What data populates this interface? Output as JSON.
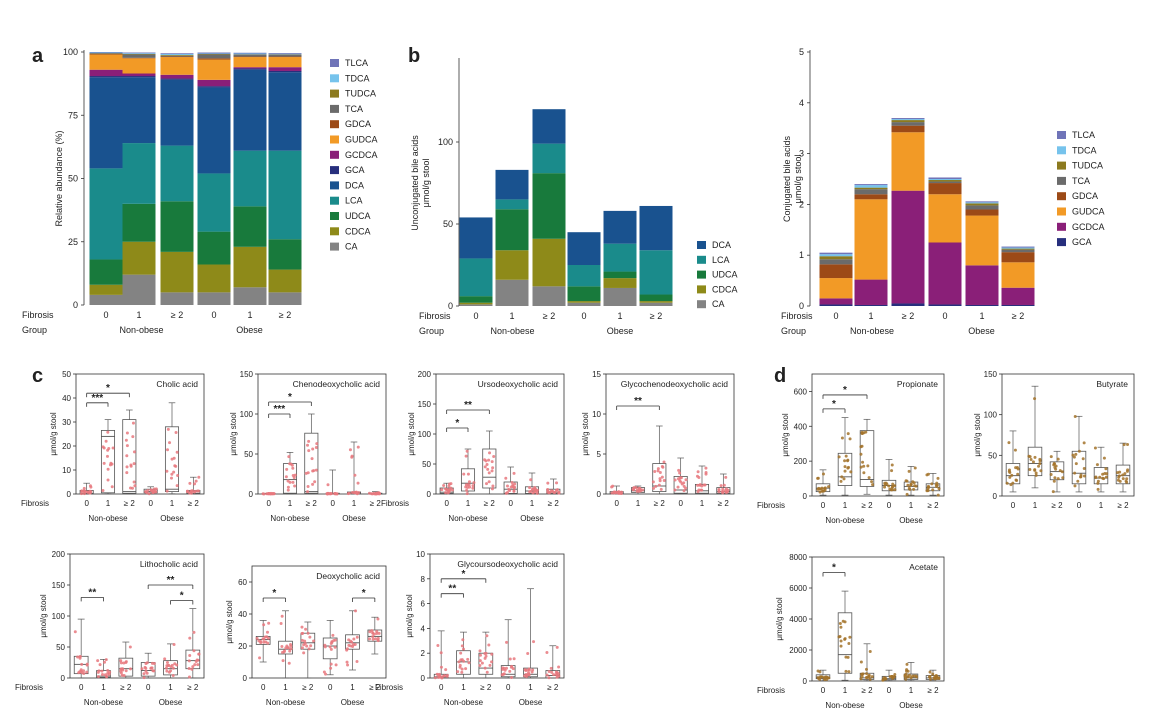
{
  "panel_labels": [
    "a",
    "b",
    "c",
    "d"
  ],
  "common": {
    "fibrosis_label": "Fibrosis",
    "group_label": "Group",
    "fib_ticks": [
      "0",
      "1",
      "≥ 2",
      "0",
      "1",
      "≥ 2"
    ],
    "groups": [
      "Non-obese",
      "Obese"
    ],
    "umol_label": "μmol/g stool"
  },
  "colors": {
    "TLCA": "#6f74b8",
    "TDCA": "#76c3ec",
    "TUDCA": "#8c7a1f",
    "TCA": "#6b6b6b",
    "GDCA": "#9c4a17",
    "GUDCA": "#f29a26",
    "GCDCA": "#8a1f78",
    "GCA": "#272f7d",
    "DCA": "#19528f",
    "LCA": "#1a8b8b",
    "UDCA": "#187a3c",
    "CDCA": "#8e8a19",
    "CA": "#838383",
    "box_red": "#e8787e",
    "box_brown": "#a3732a"
  },
  "chart_data": [
    {
      "id": "a",
      "type": "bar",
      "stacked": true,
      "ylabel": "Relative abundance (%)",
      "ylim": [
        0,
        100
      ],
      "yticks": [
        0,
        25,
        50,
        75,
        100
      ],
      "categories": [
        "0",
        "1",
        "≥ 2",
        "0",
        "1",
        "≥ 2"
      ],
      "legend": [
        "TLCA",
        "TDCA",
        "TUDCA",
        "TCA",
        "GDCA",
        "GUDCA",
        "GCDCA",
        "GCA",
        "DCA",
        "LCA",
        "UDCA",
        "CDCA",
        "CA"
      ],
      "series": [
        {
          "name": "CA",
          "values": [
            4,
            12,
            5,
            5,
            7,
            5
          ]
        },
        {
          "name": "CDCA",
          "values": [
            4,
            13,
            16,
            11,
            16,
            9
          ]
        },
        {
          "name": "UDCA",
          "values": [
            10,
            15,
            20,
            13,
            16,
            12
          ]
        },
        {
          "name": "LCA",
          "values": [
            36,
            24,
            22,
            23,
            22,
            35
          ]
        },
        {
          "name": "DCA",
          "values": [
            36,
            26,
            26,
            34,
            32,
            31
          ]
        },
        {
          "name": "GCA",
          "values": [
            0.5,
            0.5,
            0.5,
            0.5,
            0.5,
            0.5
          ]
        },
        {
          "name": "GCDCA",
          "values": [
            2.5,
            1,
            1.5,
            2.5,
            0.5,
            1.5
          ]
        },
        {
          "name": "GUDCA",
          "values": [
            6,
            6,
            7,
            8,
            4,
            4
          ]
        },
        {
          "name": "GDCA",
          "values": [
            0.2,
            0.2,
            0.2,
            0.5,
            0.2,
            0.2
          ]
        },
        {
          "name": "TCA",
          "values": [
            0.3,
            1.3,
            0.3,
            1.5,
            0.8,
            0.8
          ]
        },
        {
          "name": "TUDCA",
          "values": [
            0.1,
            0.2,
            0.3,
            0.2,
            0.1,
            0.1
          ]
        },
        {
          "name": "TDCA",
          "values": [
            0.2,
            0.3,
            0.4,
            0.2,
            0.3,
            0.2
          ]
        },
        {
          "name": "TLCA",
          "values": [
            0.2,
            0.3,
            0.3,
            0.4,
            0.3,
            0.3
          ]
        }
      ]
    },
    {
      "id": "b1",
      "type": "bar",
      "stacked": true,
      "ylabel": "Unconjugated bile acids",
      "ylabel2": "μmol/g stool",
      "ylim": [
        0,
        150
      ],
      "yticks": [
        0,
        50,
        100
      ],
      "categories": [
        "0",
        "1",
        "≥ 2",
        "0",
        "1",
        "≥ 2"
      ],
      "legend": [
        "DCA",
        "LCA",
        "UDCA",
        "CDCA",
        "CA"
      ],
      "series": [
        {
          "name": "CA",
          "values": [
            1,
            16,
            12,
            2,
            11,
            2
          ]
        },
        {
          "name": "CDCA",
          "values": [
            1,
            18,
            29,
            1,
            6,
            1
          ]
        },
        {
          "name": "UDCA",
          "values": [
            4,
            25,
            40,
            9,
            4,
            4
          ]
        },
        {
          "name": "LCA",
          "values": [
            23,
            6,
            18,
            13,
            17,
            27
          ]
        },
        {
          "name": "DCA",
          "values": [
            25,
            18,
            21,
            20,
            20,
            27
          ]
        }
      ]
    },
    {
      "id": "b2",
      "type": "bar",
      "stacked": true,
      "ylabel": "Conjugated bile acids",
      "ylabel2": "μmol/g stool",
      "ylim": [
        0,
        5
      ],
      "yticks": [
        0,
        1,
        2,
        3,
        4,
        5
      ],
      "categories": [
        "0",
        "1",
        "≥ 2",
        "0",
        "1",
        "≥ 2"
      ],
      "legend": [
        "TLCA",
        "TDCA",
        "TUDCA",
        "TCA",
        "GDCA",
        "GUDCA",
        "GCDCA",
        "GCA"
      ],
      "series": [
        {
          "name": "GCA",
          "values": [
            0.03,
            0.02,
            0.05,
            0.03,
            0.02,
            0.02
          ]
        },
        {
          "name": "GCDCA",
          "values": [
            0.12,
            0.5,
            2.22,
            1.22,
            0.78,
            0.34
          ]
        },
        {
          "name": "GUDCA",
          "values": [
            0.4,
            1.58,
            1.15,
            0.95,
            0.98,
            0.5
          ]
        },
        {
          "name": "GDCA",
          "values": [
            0.27,
            0.1,
            0.13,
            0.22,
            0.12,
            0.2
          ]
        },
        {
          "name": "TCA",
          "values": [
            0.1,
            0.1,
            0.07,
            0.03,
            0.08,
            0.05
          ]
        },
        {
          "name": "TUDCA",
          "values": [
            0.06,
            0.03,
            0.04,
            0.03,
            0.04,
            0.02
          ]
        },
        {
          "name": "TDCA",
          "values": [
            0.04,
            0.05,
            0.02,
            0.02,
            0.02,
            0.02
          ]
        },
        {
          "name": "TLCA",
          "values": [
            0.03,
            0.02,
            0.02,
            0.03,
            0.02,
            0.02
          ]
        }
      ]
    },
    {
      "id": "c1",
      "type": "box",
      "title": "Cholic acid",
      "ylim": [
        0,
        50
      ],
      "yticks": [
        0,
        10,
        20,
        30,
        40,
        50
      ],
      "boxes": [
        {
          "min": 0,
          "q1": 0,
          "median": 0.3,
          "q3": 1.5,
          "max": 4.5
        },
        {
          "min": 0.1,
          "q1": 0.5,
          "median": 24,
          "q3": 26.5,
          "max": 31
        },
        {
          "min": 0.1,
          "q1": 0.3,
          "median": 1,
          "q3": 31,
          "max": 35
        },
        {
          "min": 0,
          "q1": 0.5,
          "median": 1,
          "q3": 2,
          "max": 3
        },
        {
          "min": 0.1,
          "q1": 1,
          "median": 2,
          "q3": 28,
          "max": 38
        },
        {
          "min": 0,
          "q1": 0.3,
          "median": 1,
          "q3": 1.5,
          "max": 7
        }
      ],
      "sig": [
        {
          "from": 0,
          "to": 1,
          "label": "***",
          "y": 38
        },
        {
          "from": 0,
          "to": 2,
          "label": "*",
          "y": 42
        }
      ]
    },
    {
      "id": "c2",
      "type": "box",
      "title": "Chenodeoxycholic acid",
      "ylim": [
        0,
        150
      ],
      "yticks": [
        0,
        50,
        100,
        150
      ],
      "boxes": [
        {
          "min": 0,
          "q1": 0,
          "median": 0.2,
          "q3": 0.5,
          "max": 1
        },
        {
          "min": 0.1,
          "q1": 1,
          "median": 18,
          "q3": 38,
          "max": 52
        },
        {
          "min": 0.1,
          "q1": 1,
          "median": 3,
          "q3": 76,
          "max": 100
        },
        {
          "min": 0,
          "q1": 0,
          "median": 0.5,
          "q3": 1,
          "max": 30
        },
        {
          "min": 0,
          "q1": 0.2,
          "median": 1.5,
          "q3": 2.5,
          "max": 65
        },
        {
          "min": 0,
          "q1": 0,
          "median": 0.3,
          "q3": 1,
          "max": 3
        }
      ],
      "sig": [
        {
          "from": 0,
          "to": 1,
          "label": "***",
          "y": 100
        },
        {
          "from": 0,
          "to": 2,
          "label": "*",
          "y": 115
        }
      ]
    },
    {
      "id": "c3",
      "type": "box",
      "title": "Ursodeoxycholic acid",
      "ylim": [
        0,
        200
      ],
      "yticks": [
        0,
        50,
        100,
        150,
        200
      ],
      "boxes": [
        {
          "min": 0,
          "q1": 1,
          "median": 3,
          "q3": 10,
          "max": 18
        },
        {
          "min": 0.1,
          "q1": 5,
          "median": 18,
          "q3": 42,
          "max": 75
        },
        {
          "min": 0.1,
          "q1": 10,
          "median": 28,
          "q3": 75,
          "max": 105
        },
        {
          "min": 0,
          "q1": 1,
          "median": 8,
          "q3": 20,
          "max": 45
        },
        {
          "min": 0,
          "q1": 1,
          "median": 5,
          "q3": 12,
          "max": 35
        },
        {
          "min": 0,
          "q1": 1,
          "median": 3,
          "q3": 8,
          "max": 25
        }
      ],
      "sig": [
        {
          "from": 0,
          "to": 1,
          "label": "*",
          "y": 110
        },
        {
          "from": 0,
          "to": 2,
          "label": "**",
          "y": 140
        }
      ]
    },
    {
      "id": "c4",
      "type": "box",
      "title": "Glycochenodeoxycholic acid",
      "ylim": [
        0,
        15
      ],
      "yticks": [
        0,
        5,
        10,
        15
      ],
      "boxes": [
        {
          "min": 0,
          "q1": 0,
          "median": 0.1,
          "q3": 0.3,
          "max": 1
        },
        {
          "min": 0,
          "q1": 0.2,
          "median": 0.4,
          "q3": 0.8,
          "max": 1
        },
        {
          "min": 0,
          "q1": 0.3,
          "median": 1,
          "q3": 3.8,
          "max": 8.5
        },
        {
          "min": 0,
          "q1": 0.1,
          "median": 0.5,
          "q3": 2.2,
          "max": 4.5
        },
        {
          "min": 0,
          "q1": 0.1,
          "median": 0.4,
          "q3": 1.2,
          "max": 3.5
        },
        {
          "min": 0,
          "q1": 0.1,
          "median": 0.3,
          "q3": 0.8,
          "max": 2.5
        }
      ],
      "sig": [
        {
          "from": 0,
          "to": 2,
          "label": "**",
          "y": 11
        }
      ]
    },
    {
      "id": "c5",
      "type": "box",
      "title": "Lithocholic acid",
      "ylim": [
        0,
        200
      ],
      "yticks": [
        0,
        50,
        100,
        150,
        200
      ],
      "boxes": [
        {
          "min": 0,
          "q1": 7,
          "median": 22,
          "q3": 35,
          "max": 95
        },
        {
          "min": 0,
          "q1": 1,
          "median": 3,
          "q3": 12,
          "max": 30
        },
        {
          "min": 0,
          "q1": 3,
          "median": 15,
          "q3": 32,
          "max": 58
        },
        {
          "min": 0,
          "q1": 3,
          "median": 12,
          "q3": 25,
          "max": 40
        },
        {
          "min": 0,
          "q1": 5,
          "median": 15,
          "q3": 28,
          "max": 55
        },
        {
          "min": 0,
          "q1": 15,
          "median": 28,
          "q3": 45,
          "max": 112
        }
      ],
      "sig": [
        {
          "from": 0,
          "to": 1,
          "label": "**",
          "y": 130
        },
        {
          "from": 4,
          "to": 5,
          "label": "*",
          "y": 125
        },
        {
          "from": 3,
          "to": 5,
          "label": "**",
          "y": 150
        }
      ]
    },
    {
      "id": "c6",
      "type": "box",
      "title": "Deoxycholic acid",
      "ylim": [
        0,
        70
      ],
      "yticks": [
        0,
        20,
        40,
        60
      ],
      "boxes": [
        {
          "min": 10,
          "q1": 21,
          "median": 24,
          "q3": 26,
          "max": 36
        },
        {
          "min": 0,
          "q1": 15,
          "median": 18,
          "q3": 23,
          "max": 42
        },
        {
          "min": 0,
          "q1": 18,
          "median": 22,
          "q3": 28,
          "max": 35
        },
        {
          "min": 2,
          "q1": 12,
          "median": 20,
          "q3": 25,
          "max": 36
        },
        {
          "min": 5,
          "q1": 18,
          "median": 22,
          "q3": 27,
          "max": 42
        },
        {
          "min": 15,
          "q1": 23,
          "median": 26,
          "q3": 30,
          "max": 38
        }
      ],
      "sig": [
        {
          "from": 0,
          "to": 1,
          "label": "*",
          "y": 50
        },
        {
          "from": 4,
          "to": 5,
          "label": "*",
          "y": 50
        }
      ]
    },
    {
      "id": "c7",
      "type": "box",
      "title": "Glycoursodeoxycholic acid",
      "ylim": [
        0,
        10
      ],
      "yticks": [
        0,
        2,
        4,
        6,
        8,
        10
      ],
      "boxes": [
        {
          "min": 0,
          "q1": 0,
          "median": 0.1,
          "q3": 0.3,
          "max": 3.8
        },
        {
          "min": 0,
          "q1": 0.3,
          "median": 1.3,
          "q3": 2.2,
          "max": 3.7
        },
        {
          "min": 0,
          "q1": 0.3,
          "median": 0.8,
          "q3": 2,
          "max": 3.7
        },
        {
          "min": 0,
          "q1": 0.1,
          "median": 0.3,
          "q3": 1,
          "max": 4.7
        },
        {
          "min": 0,
          "q1": 0.1,
          "median": 0.3,
          "q3": 0.8,
          "max": 7.2
        },
        {
          "min": 0,
          "q1": 0,
          "median": 0.2,
          "q3": 0.6,
          "max": 2.6
        }
      ],
      "sig": [
        {
          "from": 0,
          "to": 1,
          "label": "**",
          "y": 6.8
        },
        {
          "from": 0,
          "to": 2,
          "label": "*",
          "y": 8
        }
      ]
    },
    {
      "id": "d1",
      "type": "box",
      "title": "Propionate",
      "ylim": [
        0,
        700
      ],
      "yticks": [
        0,
        200,
        400,
        600
      ],
      "boxes": [
        {
          "min": 5,
          "q1": 25,
          "median": 45,
          "q3": 70,
          "max": 150
        },
        {
          "min": 5,
          "q1": 60,
          "median": 110,
          "q3": 245,
          "max": 450
        },
        {
          "min": 10,
          "q1": 55,
          "median": 95,
          "q3": 375,
          "max": 440
        },
        {
          "min": 5,
          "q1": 30,
          "median": 60,
          "q3": 90,
          "max": 210
        },
        {
          "min": 5,
          "q1": 35,
          "median": 55,
          "q3": 80,
          "max": 170
        },
        {
          "min": 5,
          "q1": 30,
          "median": 50,
          "q3": 70,
          "max": 130
        }
      ],
      "sig": [
        {
          "from": 0,
          "to": 1,
          "label": "*",
          "y": 500
        },
        {
          "from": 0,
          "to": 2,
          "label": "*",
          "y": 580
        }
      ]
    },
    {
      "id": "d2",
      "type": "box",
      "title": "Butyrate",
      "ylim": [
        0,
        150
      ],
      "yticks": [
        0,
        50,
        100,
        150
      ],
      "boxes": [
        {
          "min": 5,
          "q1": 15,
          "median": 25,
          "q3": 40,
          "max": 80
        },
        {
          "min": 10,
          "q1": 25,
          "median": 40,
          "q3": 60,
          "max": 135
        },
        {
          "min": 5,
          "q1": 20,
          "median": 30,
          "q3": 42,
          "max": 55
        },
        {
          "min": 5,
          "q1": 15,
          "median": 28,
          "q3": 55,
          "max": 98
        },
        {
          "min": 5,
          "q1": 15,
          "median": 22,
          "q3": 35,
          "max": 60
        },
        {
          "min": 5,
          "q1": 15,
          "median": 25,
          "q3": 38,
          "max": 65
        }
      ],
      "sig": []
    },
    {
      "id": "d3",
      "type": "box",
      "title": "Acetate",
      "ylim": [
        0,
        8000
      ],
      "yticks": [
        0,
        2000,
        4000,
        6000,
        8000
      ],
      "boxes": [
        {
          "min": 20,
          "q1": 150,
          "median": 250,
          "q3": 400,
          "max": 700
        },
        {
          "min": 50,
          "q1": 500,
          "median": 1700,
          "q3": 4400,
          "max": 5800
        },
        {
          "min": 20,
          "q1": 100,
          "median": 200,
          "q3": 500,
          "max": 2400
        },
        {
          "min": 20,
          "q1": 80,
          "median": 150,
          "q3": 300,
          "max": 700
        },
        {
          "min": 20,
          "q1": 100,
          "median": 200,
          "q3": 450,
          "max": 1200
        },
        {
          "min": 20,
          "q1": 100,
          "median": 200,
          "q3": 350,
          "max": 700
        }
      ],
      "sig": [
        {
          "from": 0,
          "to": 1,
          "label": "*",
          "y": 7000
        }
      ]
    }
  ]
}
